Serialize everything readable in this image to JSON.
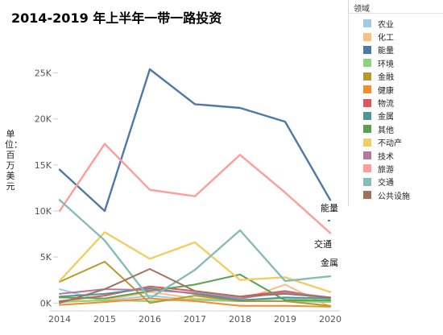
{
  "chart_data": {
    "type": "line",
    "title": "2014-2019 年上半年一带一路投资",
    "ylabel": "单位：百万美元",
    "xlabel": "",
    "x": [
      2014,
      2015,
      2016,
      2017,
      2018,
      2019,
      2020
    ],
    "ylim": [
      -500,
      27500
    ],
    "yticks": [
      {
        "value": 0,
        "label": "0K"
      },
      {
        "value": 5000,
        "label": "5K"
      },
      {
        "value": 10000,
        "label": "10K"
      },
      {
        "value": 15000,
        "label": "15K"
      },
      {
        "value": 20000,
        "label": "20K"
      },
      {
        "value": 25000,
        "label": "25K"
      }
    ],
    "grid": false,
    "legend": {
      "title": "领域",
      "position": "right"
    },
    "series": [
      {
        "name": "农业",
        "color": "#a0cbe8",
        "values": [
          1500,
          200,
          800,
          300,
          200,
          500,
          200
        ]
      },
      {
        "name": "化工",
        "color": "#ffbe7d",
        "values": [
          200,
          300,
          1200,
          500,
          300,
          2000,
          -400
        ]
      },
      {
        "name": "能量",
        "color": "#4e79a7",
        "values": [
          14500,
          10000,
          25400,
          21600,
          21200,
          19700,
          11200
        ]
      },
      {
        "name": "环境",
        "color": "#8cd17d",
        "values": [
          100,
          300,
          200,
          400,
          200,
          200,
          100
        ]
      },
      {
        "name": "金融",
        "color": "#b6992d",
        "values": [
          2300,
          4500,
          0,
          800,
          200,
          200,
          -300
        ]
      },
      {
        "name": "健康",
        "color": "#f28e2b",
        "values": [
          -200,
          100,
          500,
          200,
          -300,
          -300,
          -400
        ]
      },
      {
        "name": "物流",
        "color": "#e15759",
        "values": [
          200,
          800,
          1800,
          1300,
          700,
          1300,
          500
        ]
      },
      {
        "name": "金属",
        "color": "#499894",
        "values": [
          700,
          1000,
          1600,
          1000,
          300,
          600,
          500
        ]
      },
      {
        "name": "其他",
        "color": "#59a14f",
        "values": [
          600,
          500,
          1300,
          2000,
          3100,
          300,
          300
        ]
      },
      {
        "name": "不动产",
        "color": "#f1ce63",
        "values": [
          2400,
          7700,
          4800,
          6600,
          2500,
          2800,
          1200
        ]
      },
      {
        "name": "技术",
        "color": "#b07aa1",
        "values": [
          1000,
          1500,
          1400,
          1100,
          500,
          1200,
          600
        ]
      },
      {
        "name": "旅游",
        "color": "#ff9d9a",
        "values": [
          10000,
          17300,
          12300,
          11600,
          16100,
          12000,
          7600
        ]
      },
      {
        "name": "交通",
        "color": "#86bcb6",
        "values": [
          11200,
          6800,
          500,
          3600,
          7900,
          2400,
          2900
        ]
      },
      {
        "name": "公共设施",
        "color": "#9c755f",
        "values": [
          0,
          1500,
          3700,
          1300,
          700,
          1000,
          600
        ]
      }
    ],
    "annotations": [
      {
        "text": "能量",
        "series": "能量"
      },
      {
        "text": "交通",
        "series": "交通"
      },
      {
        "text": "金属",
        "series": "金属"
      }
    ]
  }
}
